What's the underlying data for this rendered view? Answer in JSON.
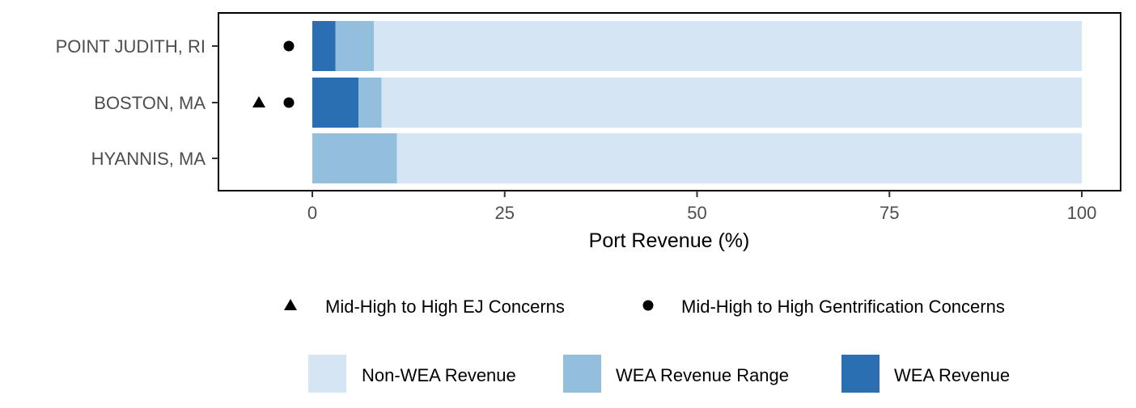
{
  "chart_data": {
    "type": "bar",
    "orientation": "horizontal",
    "stacked": true,
    "categories": [
      "POINT JUDITH, RI",
      "BOSTON, MA",
      "HYANNIS, MA"
    ],
    "series": [
      {
        "name": "WEA Revenue",
        "color": "#2b6fb3",
        "values": [
          3,
          6,
          0
        ]
      },
      {
        "name": "WEA Revenue Range",
        "color": "#93bfdc",
        "values": [
          5,
          3,
          11
        ]
      },
      {
        "name": "Non-WEA Revenue",
        "color": "#d6e5f3",
        "values": [
          92,
          91,
          89
        ]
      }
    ],
    "markers": [
      {
        "category": "BOSTON, MA",
        "type": "Mid-High to High EJ Concerns",
        "shape": "triangle"
      },
      {
        "category": "POINT JUDITH, RI",
        "type": "Mid-High to High Gentrification Concerns",
        "shape": "circle"
      },
      {
        "category": "BOSTON, MA",
        "type": "Mid-High to High Gentrification Concerns",
        "shape": "circle"
      }
    ],
    "xlabel": "Port Revenue (%)",
    "ylabel": "",
    "title": "",
    "xticks": [
      "0",
      "25",
      "50",
      "75",
      "100"
    ],
    "xlim": [
      -12.3,
      105.3
    ],
    "grid": false,
    "legend_position": "bottom",
    "shape_legend": [
      {
        "shape": "triangle",
        "label": "Mid-High to High EJ Concerns"
      },
      {
        "shape": "circle",
        "label": "Mid-High to High Gentrification Concerns"
      }
    ],
    "fill_legend": [
      {
        "label": "Non-WEA Revenue",
        "color": "#d6e5f3"
      },
      {
        "label": "WEA Revenue Range",
        "color": "#93bfdc"
      },
      {
        "label": "WEA Revenue",
        "color": "#2b6fb3"
      }
    ]
  }
}
